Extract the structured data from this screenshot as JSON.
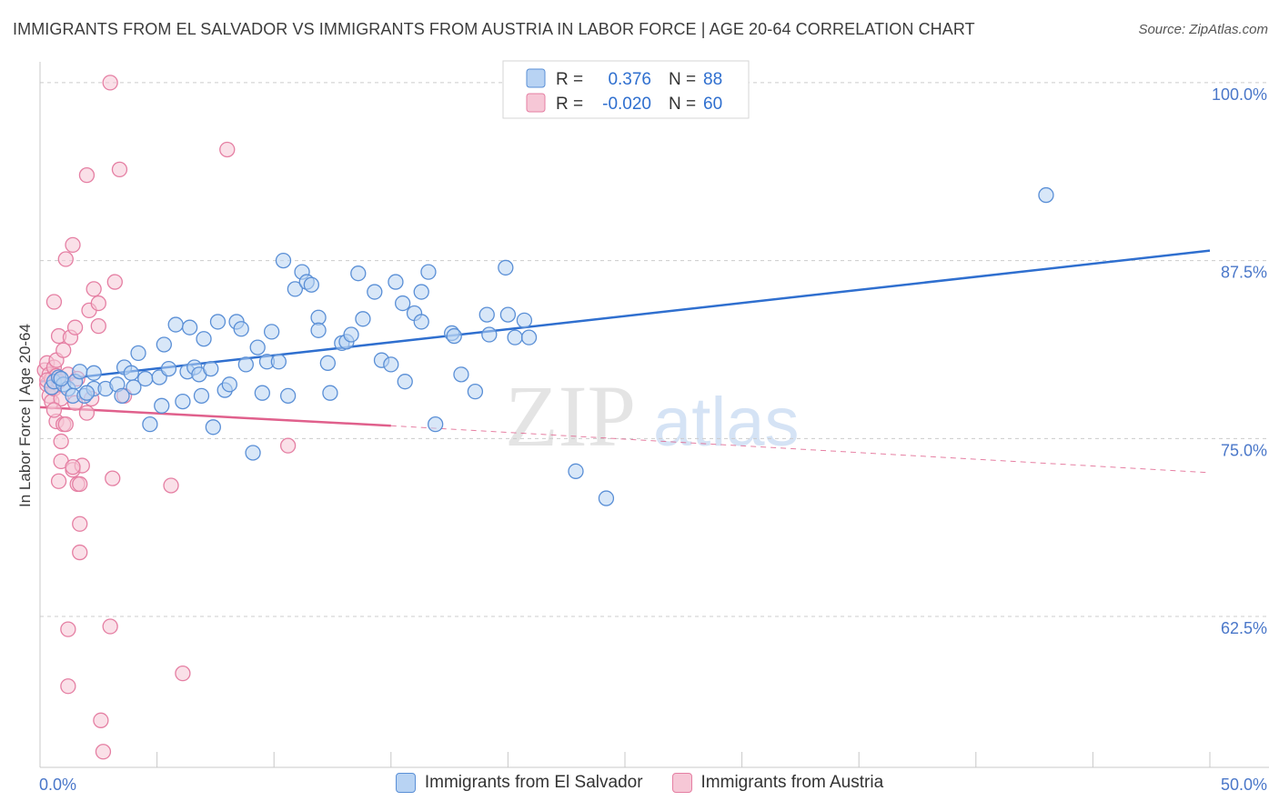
{
  "title": "IMMIGRANTS FROM EL SALVADOR VS IMMIGRANTS FROM AUSTRIA IN LABOR FORCE | AGE 20-64 CORRELATION CHART",
  "source": "Source: ZipAtlas.com",
  "watermark": {
    "zip": "ZIP",
    "atlas": "atlas"
  },
  "legend": {
    "r_label": "R =",
    "n_label": "N =",
    "series": [
      {
        "r": "0.376",
        "n": "88"
      },
      {
        "r": "-0.020",
        "n": "60"
      }
    ]
  },
  "colors": {
    "blue_fill": "#b8d3f3",
    "blue_stroke": "#5a8fd6",
    "blue_line": "#2f6fcf",
    "pink_fill": "#f6c7d6",
    "pink_stroke": "#e57fa3",
    "pink_line": "#e0608c",
    "tick_text": "#4a77c9",
    "grid": "#cccccc"
  },
  "chart_data": {
    "type": "scatter",
    "xlabel": "",
    "ylabel": "In Labor Force | Age 20-64",
    "xlim": [
      0,
      50
    ],
    "ylim": [
      51.9,
      102.1
    ],
    "x_tick_labels": [
      "0.0%",
      "50.0%"
    ],
    "y_ticks": [
      62.5,
      75.0,
      87.5,
      100.0
    ],
    "y_tick_labels": [
      "62.5%",
      "75.0%",
      "87.5%",
      "100.0%"
    ],
    "grid": "horizontal dashed",
    "legend_position": "top-center",
    "series": [
      {
        "name": "Immigrants from El Salvador",
        "color": "#5a8fd6",
        "trend": {
          "x": [
            0.0,
            50.0
          ],
          "y": [
            79.0,
            88.2
          ]
        },
        "points": [
          [
            0.5,
            78.6
          ],
          [
            0.6,
            79.0
          ],
          [
            0.8,
            79.3
          ],
          [
            1.0,
            78.8
          ],
          [
            1.2,
            78.5
          ],
          [
            1.5,
            79.0
          ],
          [
            1.7,
            79.7
          ],
          [
            1.4,
            78.0
          ],
          [
            1.9,
            78.0
          ],
          [
            2.3,
            78.5
          ],
          [
            2.3,
            79.6
          ],
          [
            2.8,
            78.5
          ],
          [
            3.3,
            78.8
          ],
          [
            3.5,
            78.0
          ],
          [
            3.6,
            80.0
          ],
          [
            3.9,
            79.6
          ],
          [
            4.0,
            78.6
          ],
          [
            4.2,
            81.0
          ],
          [
            4.5,
            79.2
          ],
          [
            4.7,
            76.0
          ],
          [
            5.1,
            79.3
          ],
          [
            5.2,
            77.3
          ],
          [
            5.3,
            81.6
          ],
          [
            5.5,
            79.9
          ],
          [
            5.8,
            83.0
          ],
          [
            6.1,
            77.6
          ],
          [
            6.3,
            79.7
          ],
          [
            6.4,
            82.8
          ],
          [
            6.6,
            80.0
          ],
          [
            6.8,
            79.5
          ],
          [
            7.0,
            82.0
          ],
          [
            7.3,
            79.9
          ],
          [
            7.4,
            75.8
          ],
          [
            7.6,
            83.2
          ],
          [
            7.9,
            78.4
          ],
          [
            8.1,
            78.8
          ],
          [
            8.4,
            83.2
          ],
          [
            8.6,
            82.7
          ],
          [
            8.8,
            80.2
          ],
          [
            9.1,
            74.0
          ],
          [
            9.3,
            81.4
          ],
          [
            9.5,
            78.2
          ],
          [
            9.7,
            80.4
          ],
          [
            9.9,
            82.5
          ],
          [
            10.2,
            80.4
          ],
          [
            10.4,
            87.5
          ],
          [
            10.6,
            78.0
          ],
          [
            10.9,
            85.5
          ],
          [
            11.2,
            86.7
          ],
          [
            11.4,
            86.0
          ],
          [
            11.6,
            85.8
          ],
          [
            11.9,
            83.5
          ],
          [
            11.9,
            82.6
          ],
          [
            12.3,
            80.3
          ],
          [
            12.4,
            78.2
          ],
          [
            12.9,
            81.7
          ],
          [
            13.1,
            81.8
          ],
          [
            13.3,
            82.3
          ],
          [
            13.6,
            86.6
          ],
          [
            13.8,
            83.4
          ],
          [
            14.3,
            85.3
          ],
          [
            14.6,
            80.5
          ],
          [
            15.0,
            80.2
          ],
          [
            15.2,
            86.0
          ],
          [
            15.5,
            84.5
          ],
          [
            16.0,
            83.8
          ],
          [
            16.3,
            83.2
          ],
          [
            16.3,
            85.3
          ],
          [
            16.6,
            86.7
          ],
          [
            16.9,
            76.0
          ],
          [
            17.6,
            82.4
          ],
          [
            17.7,
            82.2
          ],
          [
            18.0,
            79.5
          ],
          [
            18.6,
            78.3
          ],
          [
            19.1,
            83.7
          ],
          [
            19.2,
            82.3
          ],
          [
            19.9,
            87.0
          ],
          [
            20.0,
            83.7
          ],
          [
            20.3,
            82.1
          ],
          [
            20.7,
            83.3
          ],
          [
            20.9,
            82.1
          ],
          [
            22.9,
            72.7
          ],
          [
            24.2,
            70.8
          ],
          [
            43.0,
            92.1
          ],
          [
            0.9,
            79.2
          ],
          [
            2.0,
            78.2
          ],
          [
            6.9,
            78.0
          ],
          [
            15.6,
            79.0
          ]
        ]
      },
      {
        "name": "Immigrants from Austria",
        "color": "#e57fa3",
        "trend": {
          "x": [
            0.0,
            15.0
          ],
          "y": [
            77.2,
            75.9
          ]
        },
        "trend_extension": {
          "x": [
            15.0,
            50.0
          ],
          "y": [
            75.9,
            72.6
          ]
        },
        "points": [
          [
            0.2,
            79.8
          ],
          [
            0.3,
            78.8
          ],
          [
            0.3,
            80.3
          ],
          [
            0.4,
            78.0
          ],
          [
            0.4,
            79.5
          ],
          [
            0.5,
            77.6
          ],
          [
            0.5,
            79.2
          ],
          [
            0.6,
            80.0
          ],
          [
            0.6,
            78.5
          ],
          [
            0.7,
            79.4
          ],
          [
            0.7,
            76.2
          ],
          [
            0.6,
            84.6
          ],
          [
            0.7,
            80.5
          ],
          [
            0.8,
            82.2
          ],
          [
            0.8,
            72.0
          ],
          [
            0.9,
            74.8
          ],
          [
            0.9,
            77.8
          ],
          [
            1.0,
            76.0
          ],
          [
            0.9,
            73.4
          ],
          [
            1.0,
            81.2
          ],
          [
            1.1,
            87.6
          ],
          [
            1.1,
            76.0
          ],
          [
            1.2,
            79.5
          ],
          [
            1.2,
            61.6
          ],
          [
            1.2,
            57.6
          ],
          [
            1.3,
            82.1
          ],
          [
            1.4,
            72.8
          ],
          [
            1.4,
            88.6
          ],
          [
            1.5,
            82.8
          ],
          [
            1.5,
            77.5
          ],
          [
            1.6,
            79.2
          ],
          [
            1.6,
            71.8
          ],
          [
            1.7,
            71.8
          ],
          [
            1.7,
            69.0
          ],
          [
            1.7,
            67.0
          ],
          [
            1.8,
            73.1
          ],
          [
            2.0,
            93.5
          ],
          [
            2.1,
            84.0
          ],
          [
            2.2,
            77.8
          ],
          [
            2.3,
            85.5
          ],
          [
            2.5,
            84.5
          ],
          [
            2.5,
            82.9
          ],
          [
            2.6,
            55.2
          ],
          [
            2.7,
            53.0
          ],
          [
            3.0,
            100.0
          ],
          [
            3.0,
            61.8
          ],
          [
            3.1,
            72.2
          ],
          [
            3.2,
            86.0
          ],
          [
            3.4,
            93.9
          ],
          [
            3.6,
            78.0
          ],
          [
            5.6,
            71.7
          ],
          [
            6.1,
            58.5
          ],
          [
            8.0,
            95.3
          ],
          [
            10.6,
            74.5
          ],
          [
            0.5,
            78.6
          ],
          [
            0.3,
            79.1
          ],
          [
            1.4,
            73.0
          ],
          [
            0.8,
            79.0
          ],
          [
            0.6,
            77.0
          ],
          [
            2.0,
            76.8
          ]
        ]
      }
    ]
  }
}
